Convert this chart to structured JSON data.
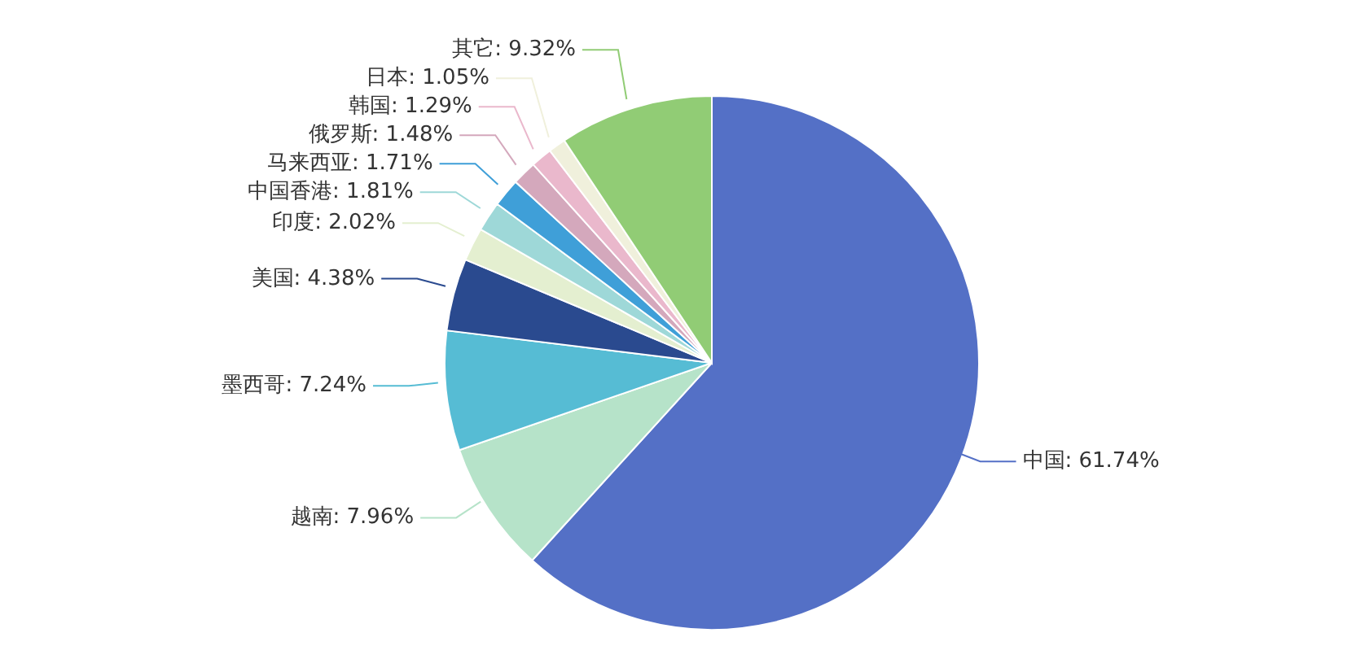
{
  "chart_data": {
    "type": "pie",
    "categories": [
      "中国",
      "越南",
      "墨西哥",
      "美国",
      "印度",
      "中国香港",
      "马来西亚",
      "俄罗斯",
      "韩国",
      "日本",
      "其它"
    ],
    "values": [
      61.74,
      7.96,
      7.24,
      4.38,
      2.02,
      1.81,
      1.71,
      1.48,
      1.29,
      1.05,
      9.32
    ],
    "colors": [
      "#5470c6",
      "#b6e3c9",
      "#56bcd4",
      "#2a4a8f",
      "#e4efd0",
      "#9ed8d8",
      "#3f9fd8",
      "#d4a8bc",
      "#eab8cc",
      "#f0f0dc",
      "#91cc75"
    ],
    "value_labels": [
      "61.74%",
      "7.96%",
      "7.24%",
      "4.38%",
      "2.02%",
      "1.81%",
      "1.71%",
      "1.48%",
      "1.29%",
      "1.05%",
      "9.32%"
    ],
    "data_labels": true,
    "legend": false
  }
}
